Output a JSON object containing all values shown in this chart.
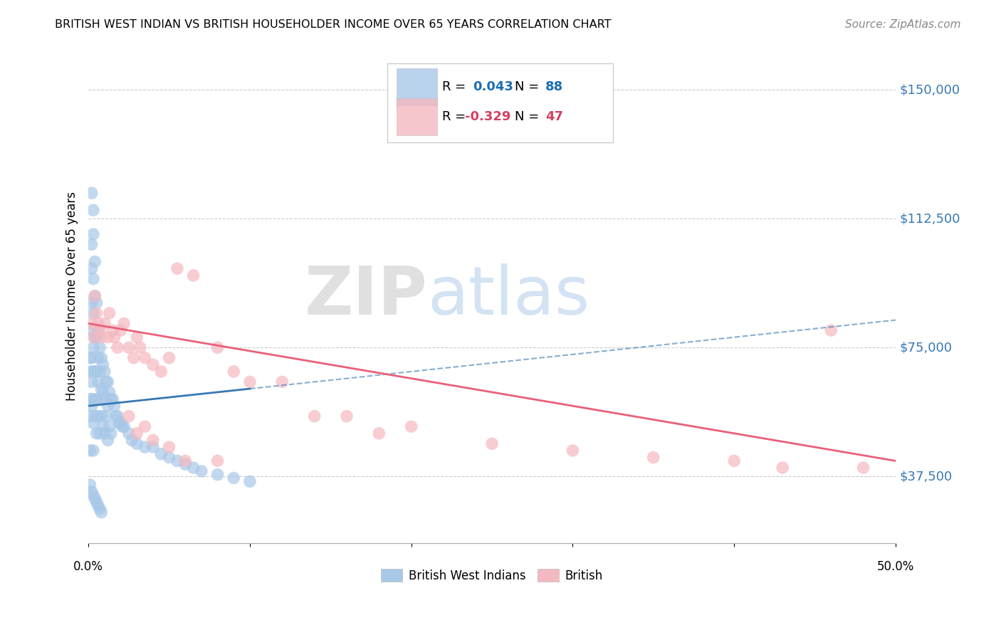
{
  "title": "BRITISH WEST INDIAN VS BRITISH HOUSEHOLDER INCOME OVER 65 YEARS CORRELATION CHART",
  "source": "Source: ZipAtlas.com",
  "ylabel": "Householder Income Over 65 years",
  "y_ticks": [
    37500,
    75000,
    112500,
    150000
  ],
  "y_tick_labels": [
    "$37,500",
    "$75,000",
    "$112,500",
    "$150,000"
  ],
  "xlim": [
    0.0,
    0.5
  ],
  "ylim": [
    18000,
    162000
  ],
  "watermark_zip": "ZIP",
  "watermark_atlas": "atlas",
  "blue_color": "#a8c8e8",
  "pink_color": "#f4b8c0",
  "blue_line_color": "#3878b4",
  "pink_line_color": "#e8607a",
  "legend_r_value_color": "#1a6eb5",
  "legend_n_value_color": "#1a6eb5",
  "legend_pink_value_color": "#d44060",
  "blue_x": [
    0.001,
    0.001,
    0.001,
    0.001,
    0.001,
    0.002,
    0.002,
    0.002,
    0.002,
    0.002,
    0.002,
    0.002,
    0.002,
    0.003,
    0.003,
    0.003,
    0.003,
    0.003,
    0.003,
    0.003,
    0.003,
    0.003,
    0.004,
    0.004,
    0.004,
    0.004,
    0.004,
    0.005,
    0.005,
    0.005,
    0.005,
    0.005,
    0.006,
    0.006,
    0.006,
    0.006,
    0.007,
    0.007,
    0.007,
    0.007,
    0.008,
    0.008,
    0.008,
    0.009,
    0.009,
    0.009,
    0.01,
    0.01,
    0.01,
    0.011,
    0.011,
    0.012,
    0.012,
    0.012,
    0.013,
    0.013,
    0.014,
    0.014,
    0.015,
    0.016,
    0.017,
    0.018,
    0.019,
    0.02,
    0.021,
    0.022,
    0.025,
    0.027,
    0.03,
    0.035,
    0.04,
    0.045,
    0.05,
    0.055,
    0.06,
    0.065,
    0.07,
    0.08,
    0.09,
    0.1,
    0.001,
    0.002,
    0.003,
    0.004,
    0.005,
    0.006,
    0.007,
    0.008
  ],
  "blue_y": [
    55000,
    68000,
    72000,
    60000,
    45000,
    120000,
    105000,
    98000,
    88000,
    80000,
    72000,
    65000,
    58000,
    115000,
    108000,
    95000,
    85000,
    75000,
    68000,
    60000,
    53000,
    45000,
    100000,
    90000,
    78000,
    68000,
    55000,
    88000,
    78000,
    68000,
    60000,
    50000,
    80000,
    72000,
    65000,
    55000,
    75000,
    68000,
    60000,
    50000,
    72000,
    63000,
    55000,
    70000,
    62000,
    52000,
    68000,
    60000,
    50000,
    65000,
    55000,
    65000,
    58000,
    48000,
    62000,
    52000,
    60000,
    50000,
    60000,
    58000,
    55000,
    55000,
    53000,
    53000,
    52000,
    52000,
    50000,
    48000,
    47000,
    46000,
    46000,
    44000,
    43000,
    42000,
    41000,
    40000,
    39000,
    38000,
    37000,
    36000,
    35000,
    33000,
    32000,
    31000,
    30000,
    29000,
    28000,
    27000
  ],
  "pink_x": [
    0.002,
    0.003,
    0.004,
    0.005,
    0.006,
    0.007,
    0.008,
    0.01,
    0.012,
    0.013,
    0.015,
    0.016,
    0.018,
    0.02,
    0.022,
    0.025,
    0.028,
    0.03,
    0.032,
    0.035,
    0.04,
    0.045,
    0.05,
    0.055,
    0.065,
    0.08,
    0.09,
    0.1,
    0.12,
    0.14,
    0.16,
    0.18,
    0.2,
    0.25,
    0.3,
    0.35,
    0.4,
    0.43,
    0.46,
    0.48,
    0.025,
    0.03,
    0.035,
    0.04,
    0.05,
    0.06,
    0.08
  ],
  "pink_y": [
    82000,
    78000,
    90000,
    85000,
    82000,
    80000,
    78000,
    82000,
    78000,
    85000,
    80000,
    78000,
    75000,
    80000,
    82000,
    75000,
    72000,
    78000,
    75000,
    72000,
    70000,
    68000,
    72000,
    98000,
    96000,
    75000,
    68000,
    65000,
    65000,
    55000,
    55000,
    50000,
    52000,
    47000,
    45000,
    43000,
    42000,
    40000,
    80000,
    40000,
    55000,
    50000,
    52000,
    48000,
    46000,
    42000,
    42000
  ]
}
